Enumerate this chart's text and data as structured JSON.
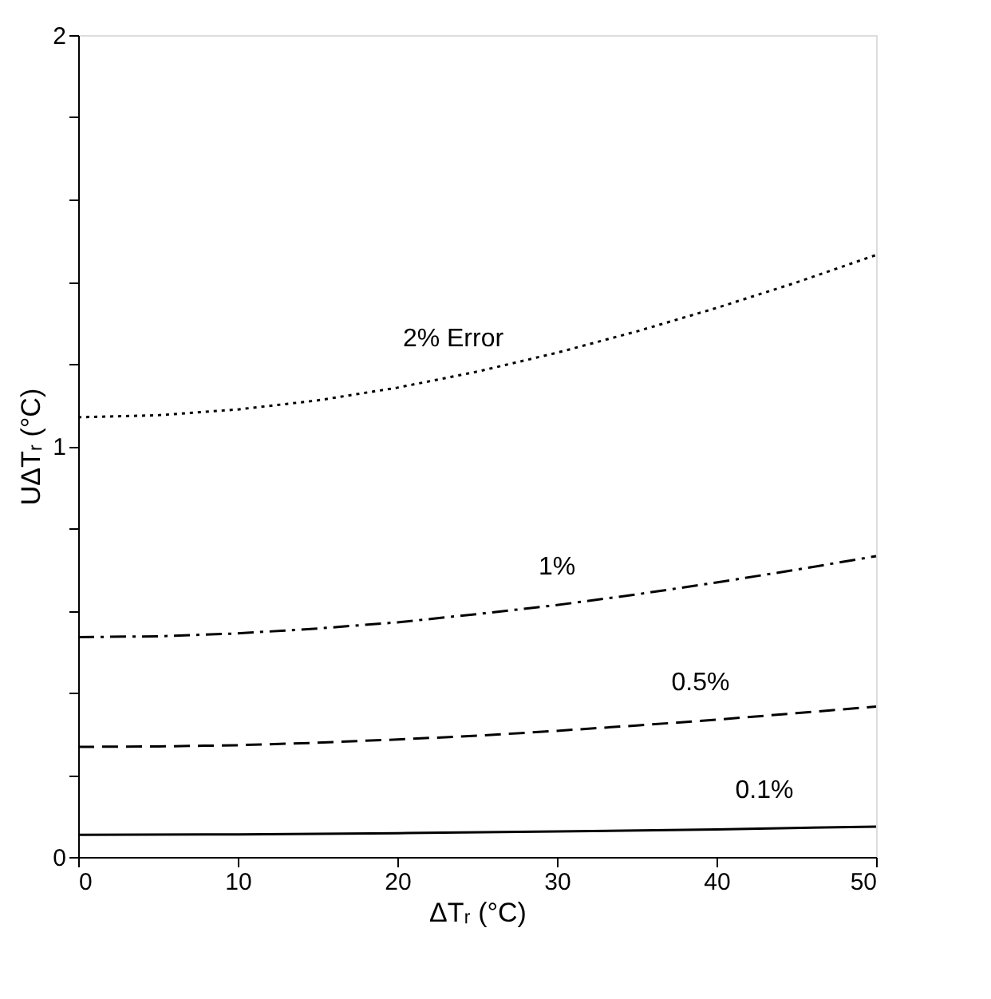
{
  "chart_data": {
    "type": "line",
    "xlabel": "ΔTᵣ (°C)",
    "ylabel": "UΔTᵣ (°C)",
    "xlim": [
      0,
      50
    ],
    "xticks": [
      0,
      10,
      20,
      30,
      40,
      50
    ],
    "ylim": [
      0,
      2
    ],
    "yticks": [
      0,
      {
        "value": 0.2,
        "label": null
      },
      {
        "value": 0.4,
        "label": null
      },
      {
        "value": 0.6,
        "label": null
      },
      {
        "value": 0.8,
        "label": null
      },
      1,
      {
        "value": 1.2,
        "label": null
      },
      {
        "value": 1.4,
        "label": null
      },
      {
        "value": 1.6,
        "label": null
      },
      {
        "value": 1.8,
        "label": null
      },
      2
    ],
    "grid": false,
    "marker": "none",
    "series": [
      {
        "name": "2% Error",
        "color": "#000000",
        "line_style": "dotted",
        "x": [
          0,
          5,
          10,
          15,
          20,
          25,
          30,
          35,
          40,
          45,
          50
        ],
        "values": [
          1.07,
          1.075,
          1.089,
          1.111,
          1.142,
          1.181,
          1.227,
          1.279,
          1.336,
          1.398,
          1.465
        ]
      },
      {
        "name": "1%",
        "color": "#000000",
        "line_style": "dashdot",
        "x": [
          0,
          5,
          10,
          15,
          20,
          25,
          30,
          35,
          40,
          45,
          50
        ],
        "values": [
          0.535,
          0.537,
          0.544,
          0.556,
          0.571,
          0.591,
          0.613,
          0.639,
          0.668,
          0.699,
          0.732
        ]
      },
      {
        "name": "0.5%",
        "color": "#000000",
        "line_style": "dashed",
        "x": [
          0,
          5,
          10,
          15,
          20,
          25,
          30,
          35,
          40,
          45,
          50
        ],
        "values": [
          0.268,
          0.269,
          0.272,
          0.278,
          0.286,
          0.295,
          0.307,
          0.32,
          0.334,
          0.35,
          0.366
        ]
      },
      {
        "name": "0.1%",
        "color": "#000000",
        "line_style": "solid",
        "x": [
          0,
          10,
          20,
          30,
          40,
          50
        ],
        "values": [
          0.054,
          0.055,
          0.058,
          0.062,
          0.067,
          0.074
        ]
      }
    ]
  }
}
